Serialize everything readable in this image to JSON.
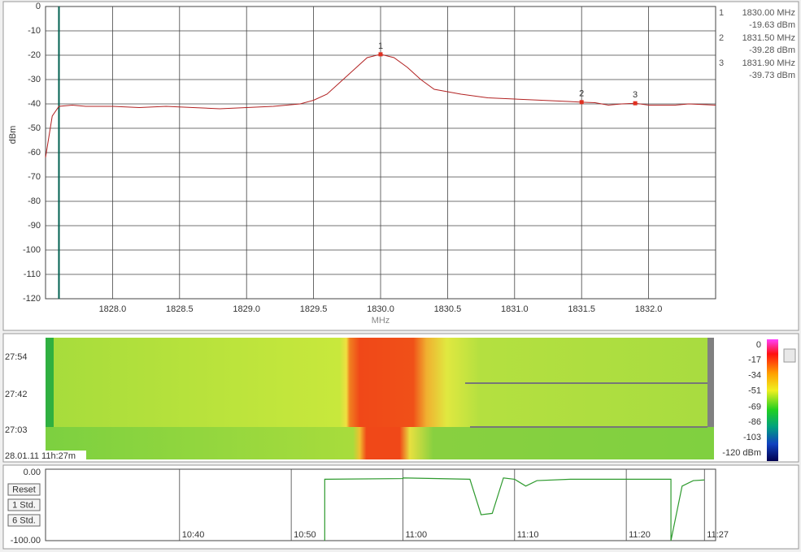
{
  "chart_data": [
    {
      "type": "line",
      "y_label": "dBm",
      "x_label": "MHz",
      "xlim": [
        1827.5,
        1832.5
      ],
      "ylim": [
        -120,
        0
      ],
      "xticks": [
        {
          "value": 1828,
          "label": "1828.0"
        },
        {
          "value": 1828.5,
          "label": "1828.5"
        },
        {
          "value": 1829,
          "label": "1829.0"
        },
        {
          "value": 1829.5,
          "label": "1829.5"
        },
        {
          "value": 1830,
          "label": "1830.0"
        },
        {
          "value": 1830.5,
          "label": "1830.5"
        },
        {
          "value": 1831,
          "label": "1831.0"
        },
        {
          "value": 1831.5,
          "label": "1831.5"
        },
        {
          "value": 1832,
          "label": "1832.0"
        }
      ],
      "yticks": [
        0,
        -10,
        -20,
        -30,
        -40,
        -50,
        -60,
        -70,
        -80,
        -90,
        -100,
        -110,
        -120
      ],
      "grid": true,
      "cursor": 1827.6,
      "series": [
        {
          "color": "#b22222",
          "x": [
            1827.5,
            1827.55,
            1827.6,
            1827.7,
            1827.8,
            1828.0,
            1828.2,
            1828.4,
            1828.6,
            1828.8,
            1829.0,
            1829.2,
            1829.4,
            1829.5,
            1829.6,
            1829.7,
            1829.8,
            1829.9,
            1830.0,
            1830.1,
            1830.2,
            1830.3,
            1830.4,
            1830.5,
            1830.6,
            1830.8,
            1831.0,
            1831.2,
            1831.4,
            1831.5,
            1831.6,
            1831.7,
            1831.8,
            1831.9,
            1832.0,
            1832.2,
            1832.3,
            1832.5
          ],
          "values": [
            -62,
            -45,
            -41,
            -40.5,
            -41,
            -41,
            -41.5,
            -41,
            -41.5,
            -42,
            -41.5,
            -41,
            -40,
            -38.5,
            -36,
            -31,
            -26,
            -21,
            -19.63,
            -21,
            -25,
            -30,
            -34,
            -35,
            -36,
            -37.5,
            -38,
            -38.5,
            -39,
            -39.28,
            -39.5,
            -40.5,
            -40,
            -39.73,
            -40.5,
            -40.5,
            -40,
            -40.5
          ]
        }
      ],
      "markers": [
        {
          "label": "1",
          "x": 1830.0,
          "y": -19.63,
          "x_label": "1830.00 MHz",
          "y_label": "-19.63 dBm"
        },
        {
          "label": "2",
          "x": 1831.5,
          "y": -39.28,
          "x_label": "1831.50 MHz",
          "y_label": "-39.28 dBm"
        },
        {
          "label": "3",
          "x": 1831.9,
          "y": -39.73,
          "x_label": "1831.90 MHz",
          "y_label": "-39.73 dBm"
        }
      ]
    },
    {
      "type": "waterfall",
      "time_labels": [
        "27:54",
        "27:42",
        "27:03"
      ],
      "timestamp": "28.01.11 11h:27m",
      "colorbar_lim": [
        -120,
        0
      ],
      "colorbar_ticks": [
        0,
        -17,
        -34,
        -51,
        -69,
        -86,
        -103,
        {
          "value": -120,
          "label": "-120 dBm"
        }
      ]
    },
    {
      "type": "strip",
      "ylim": [
        -100,
        0
      ],
      "xlim": [
        "10:28",
        "11:28"
      ],
      "yticks": [
        {
          "value": 0,
          "label": "0.00"
        },
        {
          "value": -100,
          "label": "-100.00"
        }
      ],
      "xticks": [
        "10:40",
        "10:50",
        "11:00",
        "11:10",
        "11:20",
        "11:27"
      ],
      "buttons": [
        "Reset",
        "1 Std.",
        "6 Std."
      ],
      "series": [
        {
          "color": "#2e9a2e",
          "x": [
            "10:53",
            "10:53",
            "10:53",
            "11:00",
            "11:00",
            "11:06",
            "11:07",
            "11:08",
            "11:09",
            "11:10",
            "11:11",
            "11:12",
            "11:15",
            "11:20",
            "11:24",
            "11:24",
            "11:25",
            "11:26",
            "11:27"
          ],
          "values": [
            -10,
            -100,
            -10,
            -9,
            -8,
            -10,
            -62,
            -60,
            -8,
            -10,
            -20,
            -12,
            -10,
            -10,
            -10,
            -100,
            -20,
            -12,
            -11
          ]
        }
      ]
    }
  ]
}
